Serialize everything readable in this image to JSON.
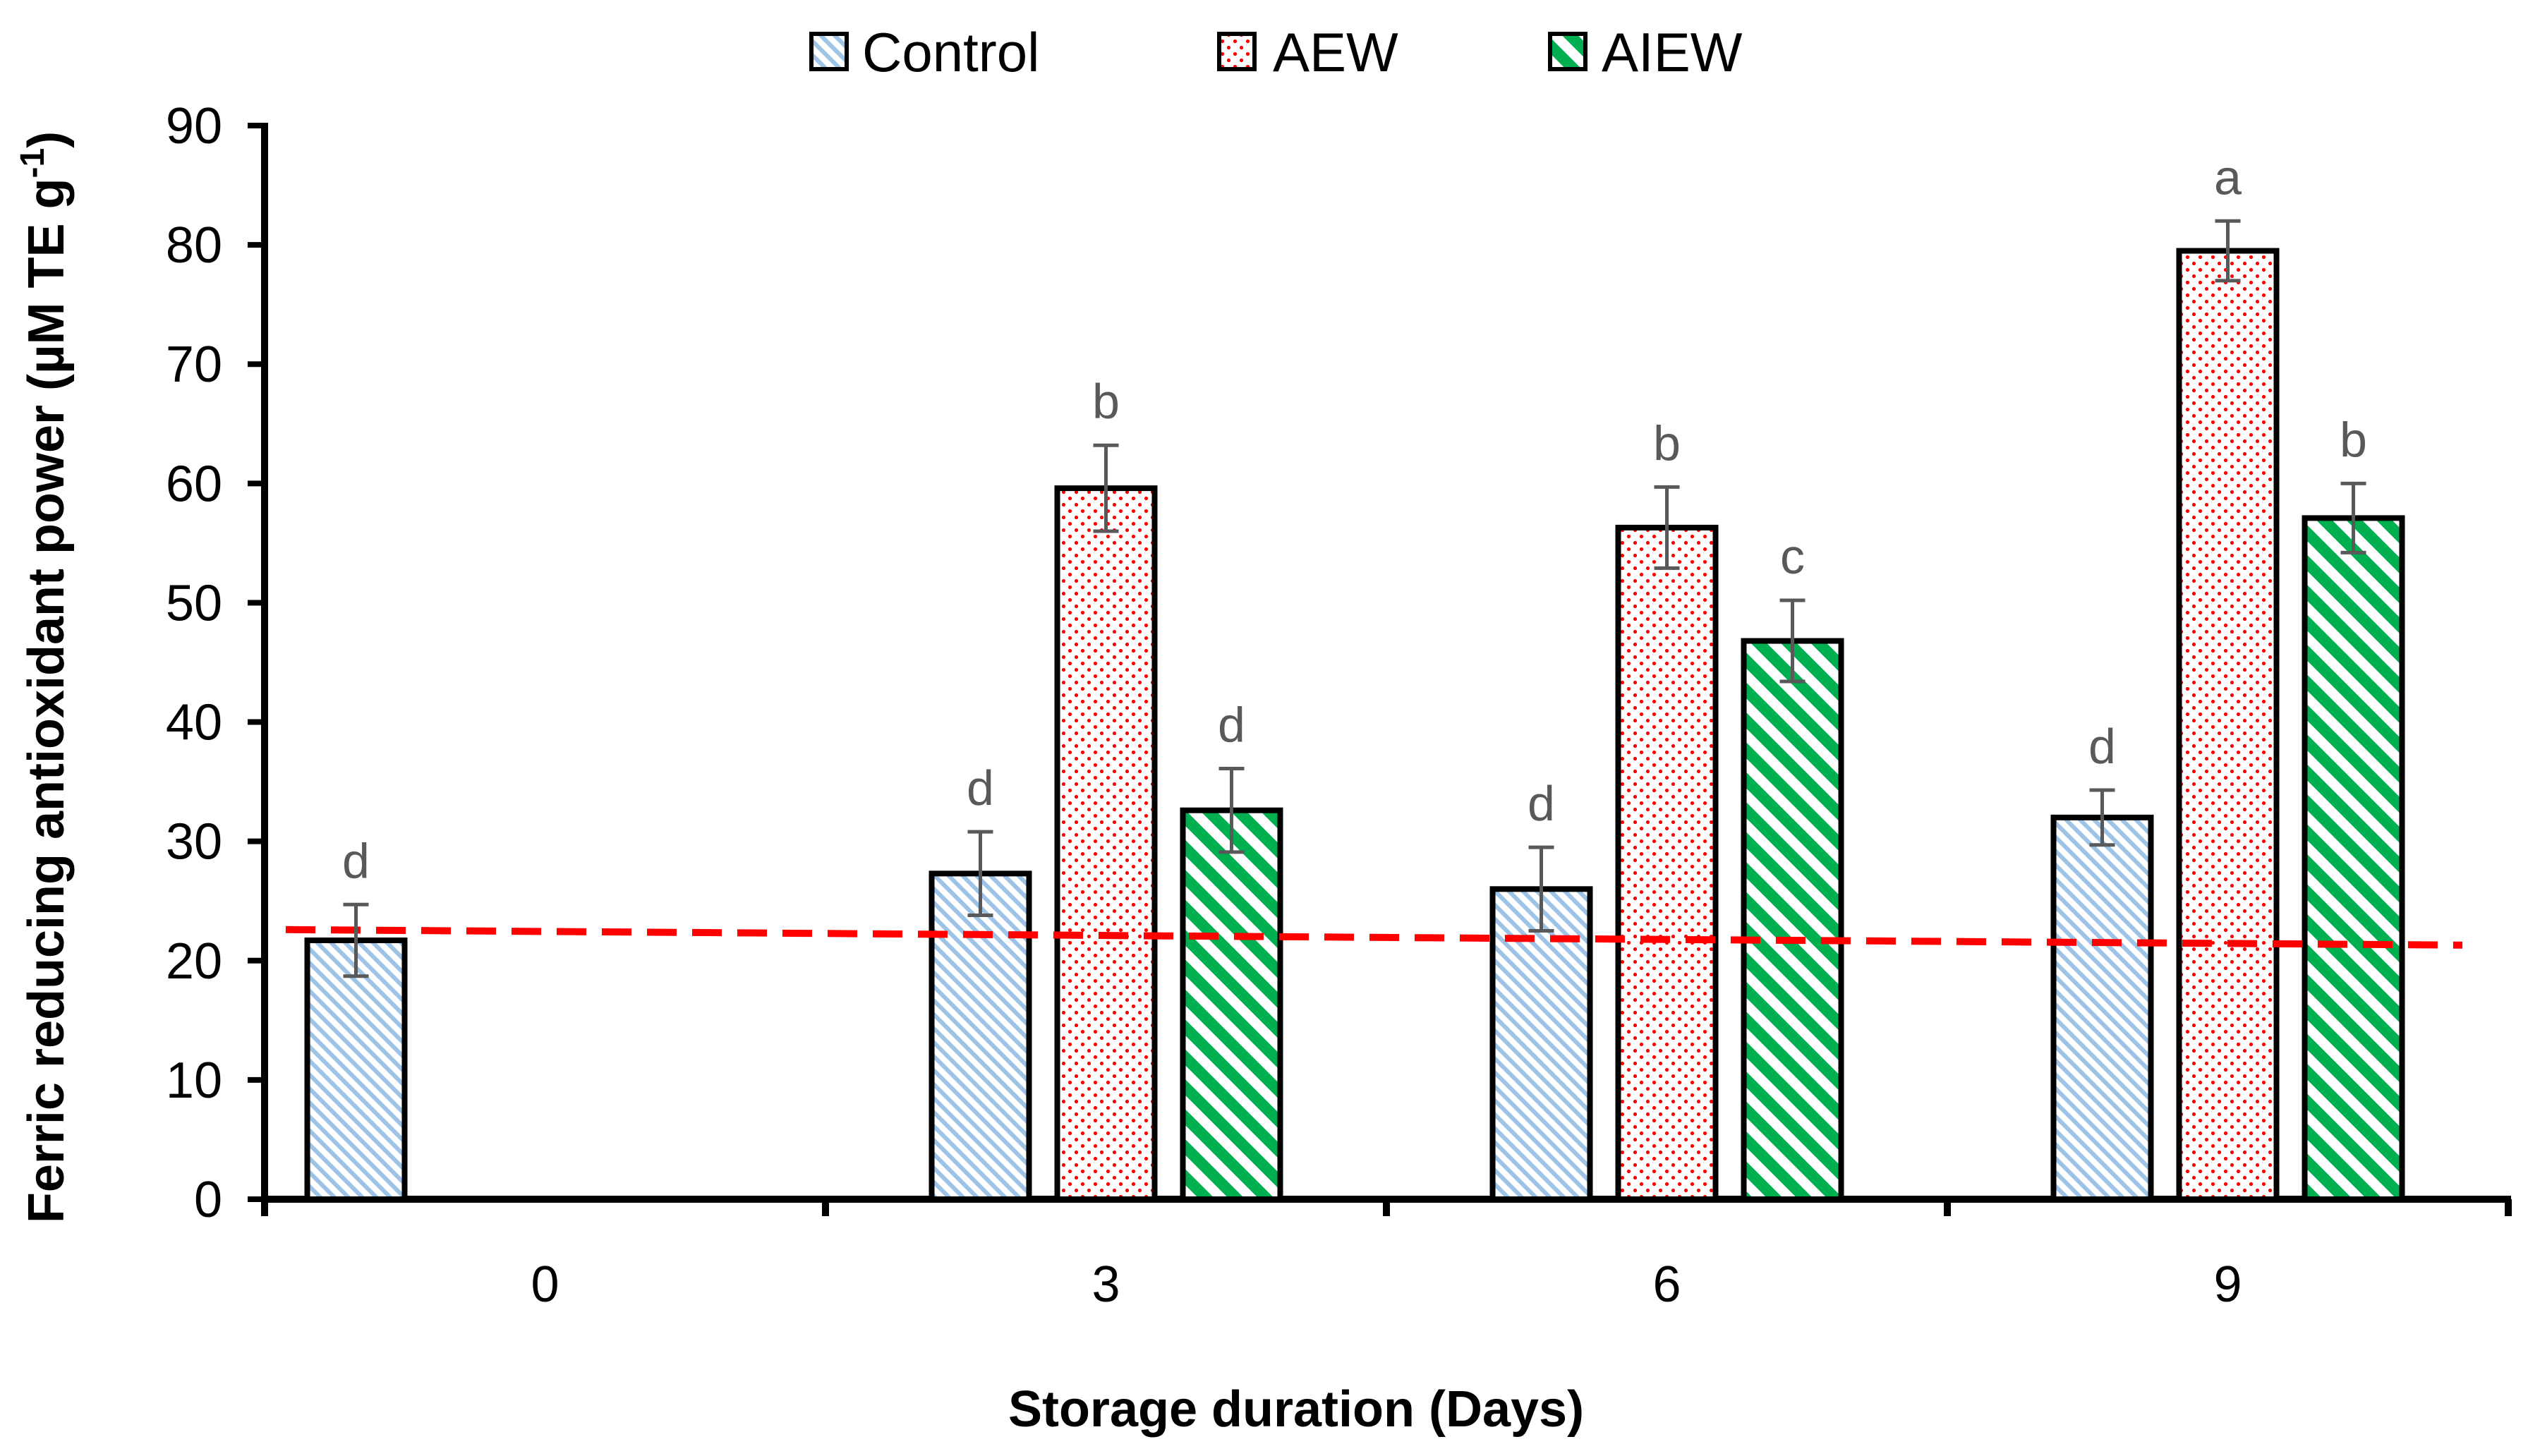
{
  "chart_data": {
    "type": "bar",
    "title": "",
    "xlabel": "Storage duration (Days)",
    "ylabel_main": "Ferric reducing antioxidant power (µM TE g",
    "ylabel_sup": "-1",
    "ylabel_end": ")",
    "categories": [
      "0",
      "3",
      "6",
      "9"
    ],
    "ylim": [
      0,
      90
    ],
    "yticks": [
      0,
      10,
      20,
      30,
      40,
      50,
      60,
      70,
      80,
      90
    ],
    "legend_position": "top",
    "series": [
      {
        "name": "Control",
        "color": "#9dc3e6",
        "pattern": "diagonal-light",
        "values": [
          21.7,
          27.3,
          26.0,
          32.0
        ],
        "errors": [
          3.0,
          3.5,
          3.5,
          2.3
        ],
        "letters": [
          "d",
          "d",
          "d",
          "d"
        ]
      },
      {
        "name": "AEW",
        "color": "#ff0000",
        "pattern": "dots",
        "values": [
          null,
          59.6,
          56.3,
          79.5
        ],
        "errors": [
          null,
          3.6,
          3.4,
          2.5
        ],
        "letters": [
          null,
          "b",
          "b",
          "a"
        ]
      },
      {
        "name": "AIEW",
        "color": "#00b050",
        "pattern": "wide-diagonal",
        "values": [
          null,
          32.6,
          46.8,
          57.1
        ],
        "errors": [
          null,
          3.5,
          3.4,
          2.9
        ],
        "letters": [
          null,
          "d",
          "c",
          "b"
        ]
      }
    ],
    "trendline": {
      "color": "#ff0000",
      "style": "dashed",
      "start_value": 22.6,
      "end_value": 21.3
    }
  }
}
